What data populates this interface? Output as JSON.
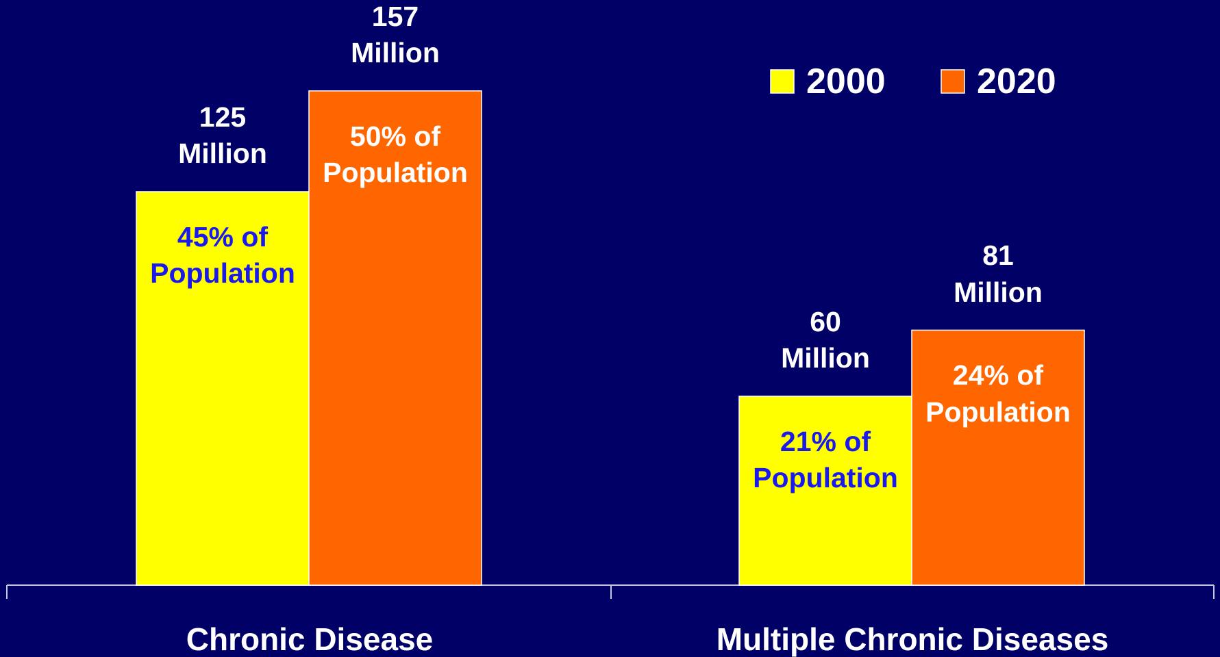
{
  "chart_data": {
    "type": "bar",
    "categories": [
      "Chronic Disease",
      "Multiple Chronic Diseases"
    ],
    "series": [
      {
        "name": "2000",
        "color": "#ffff00",
        "values": [
          125,
          60
        ],
        "value_labels": [
          "125 Million",
          "60 Million"
        ],
        "shares": [
          45,
          21
        ],
        "share_labels": [
          "45% of Population",
          "21% of Population"
        ],
        "share_color": "#1a1aee"
      },
      {
        "name": "2020",
        "color": "#ff6600",
        "values": [
          157,
          81
        ],
        "value_labels": [
          "157 Million",
          "81 Million"
        ],
        "shares": [
          50,
          24
        ],
        "share_labels": [
          "50% of Population",
          "24% of Population"
        ],
        "share_color": "#ffffff"
      }
    ],
    "legend": "top-right"
  }
}
